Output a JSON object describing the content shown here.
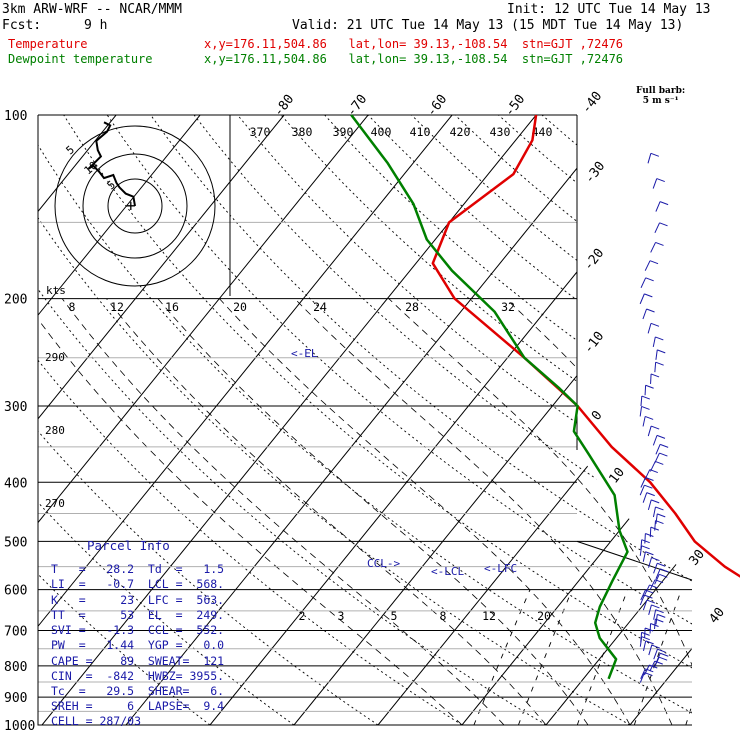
{
  "header": {
    "model": "3km ARW-WRF -- NCAR/MMM",
    "init": "Init: 12 UTC Tue 14 May 13",
    "fcst_label": "Fcst:",
    "fcst_value": "9 h",
    "valid": "Valid: 21 UTC Tue 14 May 13 (15 MDT Tue 14 May 13)"
  },
  "legend": {
    "temperature": {
      "label": "Temperature",
      "info": "x,y=176.11,504.86   lat,lon= 39.13,-108.54  stn=GJT ,72476",
      "color": "#e00000"
    },
    "dewpoint": {
      "label": "Dewpoint temperature",
      "info": "x,y=176.11,504.86   lat,lon= 39.13,-108.54  stn=GJT ,72476",
      "color": "#008000"
    }
  },
  "full_barb": {
    "line1": "Full barb:",
    "line2": "5 m s⁻¹"
  },
  "hodograph": {
    "kts_label": "kts",
    "ring_labels": [
      "5",
      "10",
      "5"
    ],
    "center_glyph": "+"
  },
  "annotations": {
    "el": "<-EL",
    "ccl": "CCL->",
    "lcl": "<-LCL",
    "lfc": "<-LFC"
  },
  "parcel_info": {
    "title": "Parcel Info",
    "rows": [
      "T   =   28.2  Td  =   1.5",
      "LI  =   -0.7  LCL =  568.",
      "K   =     23  LFC =  563.",
      "TT  =     53  EL  =  249.",
      "SVI =   -1.3  CCL =  552.",
      "PW  =   1.44  YGP =   0.0",
      "CAPE =    89  SWEAT=  121",
      "CIN  =  -842  HWBZ= 3955.",
      "Tc  =   29.5  SHEAR=   6.",
      "SREH =     6  LAPSE=  9.4",
      "CELL = 287/03"
    ]
  },
  "chart_data": {
    "type": "line",
    "diagram": "skew-T log-p",
    "y_axis": {
      "scale": "log",
      "range": [
        1000,
        100
      ],
      "ticks": [
        "100",
        "200",
        "300",
        "400",
        "500",
        "600",
        "700",
        "800",
        "900",
        "1000"
      ]
    },
    "isotherm_labels": [
      "-80",
      "-70",
      "-60",
      "-50",
      "-40",
      "-30",
      "-20",
      "-10",
      "0",
      "10",
      "20",
      "30",
      "40"
    ],
    "theta_e_labels": [
      "370",
      "380",
      "390",
      "400",
      "410",
      "420",
      "430",
      "440"
    ],
    "mixing_ratio_labels": [
      "2",
      "3",
      "5",
      "8",
      "12",
      "20"
    ],
    "left_dry_adiabat_labels": [
      "290",
      "280",
      "270"
    ],
    "dewpoint_scale_labels": [
      "8",
      "12",
      "16",
      "20",
      "24",
      "28",
      "32"
    ],
    "colors": {
      "temperature": "#e00000",
      "dewpoint": "#008000",
      "parcel": "#000000",
      "wind": "#1a1aa8",
      "axes": "#000000"
    },
    "series": [
      {
        "name": "Temperature",
        "color": "#e00000",
        "points": [
          [
            845,
            34
          ],
          [
            800,
            27
          ],
          [
            700,
            21
          ],
          [
            620,
            14
          ],
          [
            580,
            10
          ],
          [
            550,
            6
          ],
          [
            500,
            0
          ],
          [
            450,
            -5
          ],
          [
            400,
            -11
          ],
          [
            350,
            -19
          ],
          [
            300,
            -27
          ],
          [
            250,
            -38
          ],
          [
            200,
            -52
          ],
          [
            175,
            -58
          ],
          [
            150,
            -60
          ],
          [
            125,
            -57
          ],
          [
            110,
            -58
          ],
          [
            100,
            -60
          ]
        ]
      },
      {
        "name": "Dewpoint temperature",
        "color": "#008000",
        "points": [
          [
            840,
            3
          ],
          [
            780,
            2
          ],
          [
            720,
            -2
          ],
          [
            680,
            -4
          ],
          [
            640,
            -5
          ],
          [
            580,
            -6
          ],
          [
            520,
            -7
          ],
          [
            480,
            -10
          ],
          [
            420,
            -14
          ],
          [
            360,
            -21
          ],
          [
            330,
            -25
          ],
          [
            300,
            -27
          ],
          [
            280,
            -31
          ],
          [
            250,
            -38
          ],
          [
            210,
            -46
          ],
          [
            180,
            -55
          ],
          [
            160,
            -61
          ],
          [
            140,
            -66
          ],
          [
            120,
            -73
          ],
          [
            100,
            -82
          ]
        ]
      }
    ],
    "hodograph_points": [
      [
        0,
        0
      ],
      [
        -1,
        6
      ],
      [
        -6,
        8
      ],
      [
        -10,
        12
      ],
      [
        -12,
        15
      ],
      [
        -14,
        20
      ],
      [
        -20,
        18
      ],
      [
        -23,
        22
      ],
      [
        -27,
        26
      ],
      [
        -30,
        24
      ],
      [
        -22,
        32
      ],
      [
        -24,
        36
      ],
      [
        -25,
        42
      ],
      [
        -18,
        48
      ],
      [
        -16,
        52
      ],
      [
        -20,
        54
      ]
    ]
  }
}
